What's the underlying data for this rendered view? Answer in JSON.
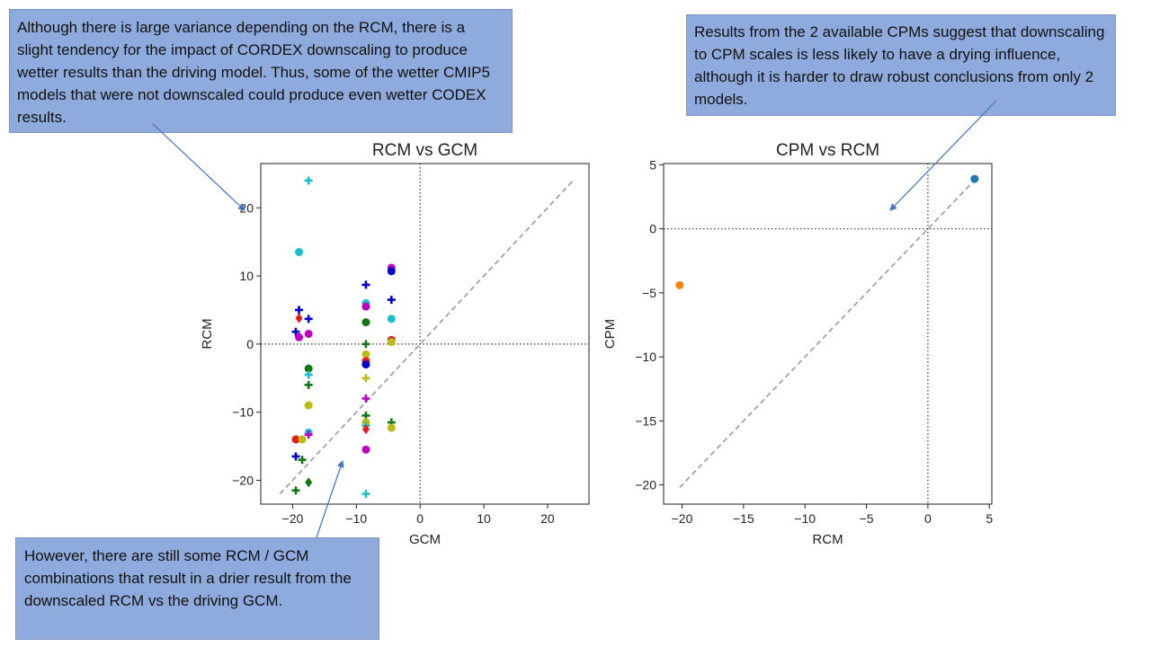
{
  "callouts": {
    "top_left": "Although there is large variance depending on the RCM, there is a slight tendency for the impact of CORDEX downscaling to produce wetter results than the driving model. Thus, some of the wetter CMIP5 models that were not downscaled could produce even wetter CODEX results.",
    "top_right": "Results from the 2 available CPMs suggest that downscaling to CPM scales is less likely to have a drying influence, although it is harder to draw robust conclusions from only 2 models.",
    "bottom_left": "However, there are still some RCM / GCM combinations that result in a drier result from the downscaled RCM vs the driving GCM."
  },
  "colors": {
    "callout_bg": "#8faadc",
    "arrow": "#4472c4",
    "one_to_one_line": "#999999"
  },
  "chart_data": [
    {
      "type": "scatter",
      "title": "RCM vs GCM",
      "xlabel": "GCM",
      "ylabel": "RCM",
      "xlim": [
        -25,
        26.5
      ],
      "ylim": [
        -23.5,
        26.5
      ],
      "xticks": [
        -20,
        -10,
        0,
        10,
        20
      ],
      "yticks": [
        -20,
        -10,
        0,
        10,
        20
      ],
      "grid": false,
      "reference_lines": {
        "x0": true,
        "y0": true,
        "one_to_one": [
          -22,
          24
        ]
      },
      "points": [
        {
          "x": -17.5,
          "y": 24,
          "marker": "plus",
          "color": "#17becf"
        },
        {
          "x": -19,
          "y": 13.5,
          "marker": "circle",
          "color": "#17becf"
        },
        {
          "x": -19,
          "y": 5,
          "marker": "plus",
          "color": "#0000cc"
        },
        {
          "x": -19,
          "y": 3.8,
          "marker": "diamond",
          "color": "#e41a1c"
        },
        {
          "x": -17.5,
          "y": 3.7,
          "marker": "plus",
          "color": "#0000cc"
        },
        {
          "x": -19.5,
          "y": 1.8,
          "marker": "plus",
          "color": "#0000cc"
        },
        {
          "x": -19,
          "y": 1,
          "marker": "circle",
          "color": "#c000c0"
        },
        {
          "x": -17.5,
          "y": 1.5,
          "marker": "circle",
          "color": "#c000c0"
        },
        {
          "x": -17.5,
          "y": -3.6,
          "marker": "circle",
          "color": "#117711"
        },
        {
          "x": -17.5,
          "y": -4.5,
          "marker": "plus",
          "color": "#17becf"
        },
        {
          "x": -17.5,
          "y": -6,
          "marker": "plus",
          "color": "#117711"
        },
        {
          "x": -17.5,
          "y": -9,
          "marker": "circle",
          "color": "#bbbb11"
        },
        {
          "x": -17.5,
          "y": -13,
          "marker": "circle",
          "color": "#17becf"
        },
        {
          "x": -17.5,
          "y": -13.3,
          "marker": "plus",
          "color": "#c000c0"
        },
        {
          "x": -19.5,
          "y": -14,
          "marker": "circle",
          "color": "#e41a1c"
        },
        {
          "x": -18.5,
          "y": -14,
          "marker": "circle",
          "color": "#bbbb11"
        },
        {
          "x": -19.5,
          "y": -16.5,
          "marker": "plus",
          "color": "#0000cc"
        },
        {
          "x": -18.5,
          "y": -17,
          "marker": "plus",
          "color": "#117711"
        },
        {
          "x": -17.5,
          "y": -20.3,
          "marker": "diamond",
          "color": "#117711"
        },
        {
          "x": -19.5,
          "y": -21.5,
          "marker": "plus",
          "color": "#117711"
        },
        {
          "x": -8.5,
          "y": 8.7,
          "marker": "plus",
          "color": "#0000cc"
        },
        {
          "x": -8.5,
          "y": 6,
          "marker": "circle",
          "color": "#17becf"
        },
        {
          "x": -8.5,
          "y": 5.5,
          "marker": "circle",
          "color": "#c000c0"
        },
        {
          "x": -8.5,
          "y": 3.2,
          "marker": "circle",
          "color": "#117711"
        },
        {
          "x": -8.5,
          "y": 0,
          "marker": "plus",
          "color": "#117711"
        },
        {
          "x": -8.5,
          "y": -1.5,
          "marker": "circle",
          "color": "#bbbb11"
        },
        {
          "x": -8.5,
          "y": -2.5,
          "marker": "circle",
          "color": "#e41a1c"
        },
        {
          "x": -8.5,
          "y": -3,
          "marker": "circle",
          "color": "#0000cc"
        },
        {
          "x": -8.5,
          "y": -5,
          "marker": "plus",
          "color": "#bbbb11"
        },
        {
          "x": -8.5,
          "y": -8,
          "marker": "plus",
          "color": "#c000c0"
        },
        {
          "x": -8.5,
          "y": -10.5,
          "marker": "plus",
          "color": "#117711"
        },
        {
          "x": -8.5,
          "y": -11.5,
          "marker": "circle",
          "color": "#bbbb11"
        },
        {
          "x": -8.5,
          "y": -12,
          "marker": "plus",
          "color": "#17becf"
        },
        {
          "x": -8.5,
          "y": -12.5,
          "marker": "diamond",
          "color": "#e41a1c"
        },
        {
          "x": -8.5,
          "y": -15.5,
          "marker": "circle",
          "color": "#c000c0"
        },
        {
          "x": -8.5,
          "y": -22,
          "marker": "plus",
          "color": "#17becf"
        },
        {
          "x": -4.5,
          "y": 11.2,
          "marker": "circle",
          "color": "#c000c0"
        },
        {
          "x": -4.5,
          "y": 10.7,
          "marker": "circle",
          "color": "#0000cc"
        },
        {
          "x": -4.5,
          "y": 6.5,
          "marker": "plus",
          "color": "#0000cc"
        },
        {
          "x": -4.5,
          "y": 3.7,
          "marker": "circle",
          "color": "#17becf"
        },
        {
          "x": -4.5,
          "y": 0.6,
          "marker": "circle",
          "color": "#e41a1c"
        },
        {
          "x": -4.5,
          "y": 0.3,
          "marker": "circle",
          "color": "#bbbb11"
        },
        {
          "x": -4.5,
          "y": -11.5,
          "marker": "plus",
          "color": "#117711"
        },
        {
          "x": -4.5,
          "y": -12.3,
          "marker": "circle",
          "color": "#bbbb11"
        }
      ]
    },
    {
      "type": "scatter",
      "title": "CPM vs RCM",
      "xlabel": "RCM",
      "ylabel": "CPM",
      "xlim": [
        -21.5,
        5.2
      ],
      "ylim": [
        -21.5,
        5.1
      ],
      "xticks": [
        -20,
        -15,
        -10,
        -5,
        0,
        5
      ],
      "yticks": [
        -20,
        -15,
        -10,
        -5,
        0,
        5
      ],
      "grid": false,
      "reference_lines": {
        "x0": true,
        "y0": true,
        "one_to_one": [
          -20.2,
          4
        ]
      },
      "points": [
        {
          "x": 3.8,
          "y": 3.9,
          "marker": "circle",
          "color": "#1f77b4"
        },
        {
          "x": -20.2,
          "y": -4.4,
          "marker": "circle",
          "color": "#ff7f0e"
        }
      ]
    }
  ]
}
